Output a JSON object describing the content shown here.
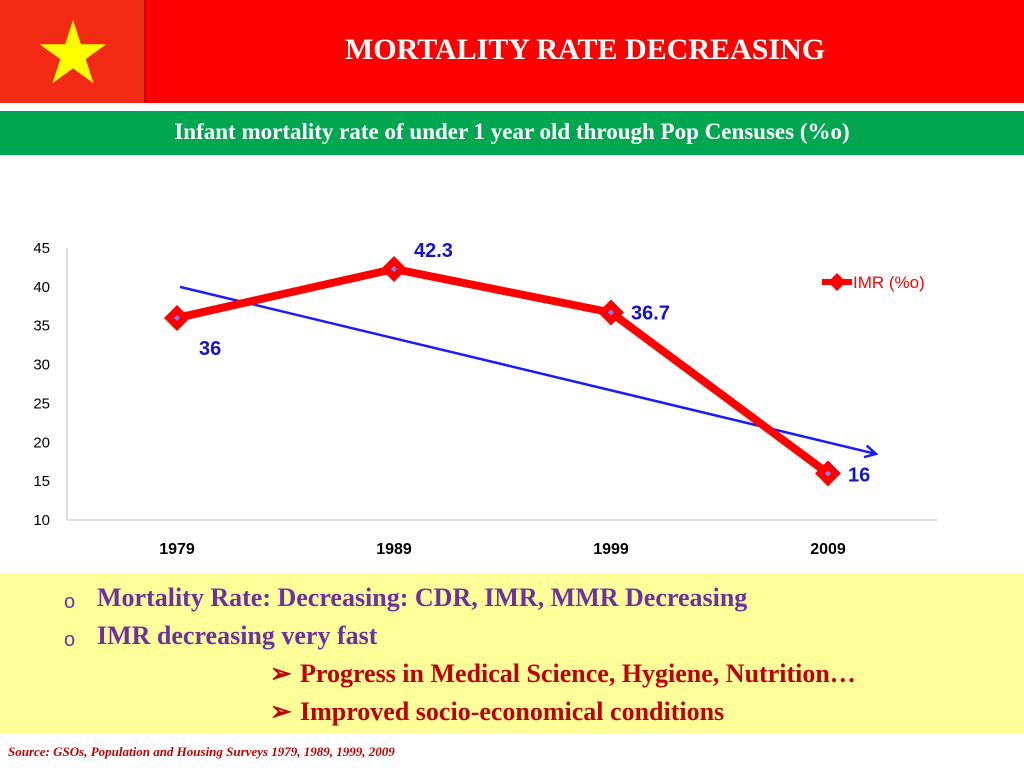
{
  "header": {
    "title": "MORTALITY RATE DECREASING",
    "subtitle": "Infant mortality rate of under 1 year old through Pop Censuses (%o)",
    "colors": {
      "header_bg": "#ff0000",
      "subtitle_bg": "#00a650",
      "star": "#ffff00"
    }
  },
  "chart_data": {
    "type": "line",
    "categories": [
      "1979",
      "1989",
      "1999",
      "2009"
    ],
    "series": [
      {
        "name": "IMR (%o)",
        "values": [
          36,
          42.3,
          36.7,
          16
        ],
        "color": "#ff0000",
        "marker": "diamond"
      }
    ],
    "data_labels": [
      "36",
      "42.3",
      "36.7",
      "16"
    ],
    "trendline": {
      "from": 40,
      "to": 18.5,
      "color": "#1a1aff",
      "arrow": true
    },
    "ylim": [
      10,
      45
    ],
    "yticks": [
      10,
      15,
      20,
      25,
      30,
      35,
      40,
      45
    ],
    "ytick_labels": [
      "10",
      "15",
      "20",
      "25",
      "30",
      "35",
      "40",
      "45"
    ],
    "legend": {
      "position": "top-right",
      "label": "IMR (%o)"
    },
    "grid": false
  },
  "notes": {
    "bullets": [
      "Mortality Rate: Decreasing: CDR, IMR, MMR  Decreasing",
      "IMR decreasing very fast"
    ],
    "bullet_marker": "o",
    "sub_bullets": [
      "Progress in Medical Science, Hygiene, Nutrition…",
      "Improved socio-economical conditions"
    ],
    "sub_bullet_marker": "➢"
  },
  "source": "Source:  GSOs,  Population and Housing Surveys  1979, 1989, 1999, 2009"
}
